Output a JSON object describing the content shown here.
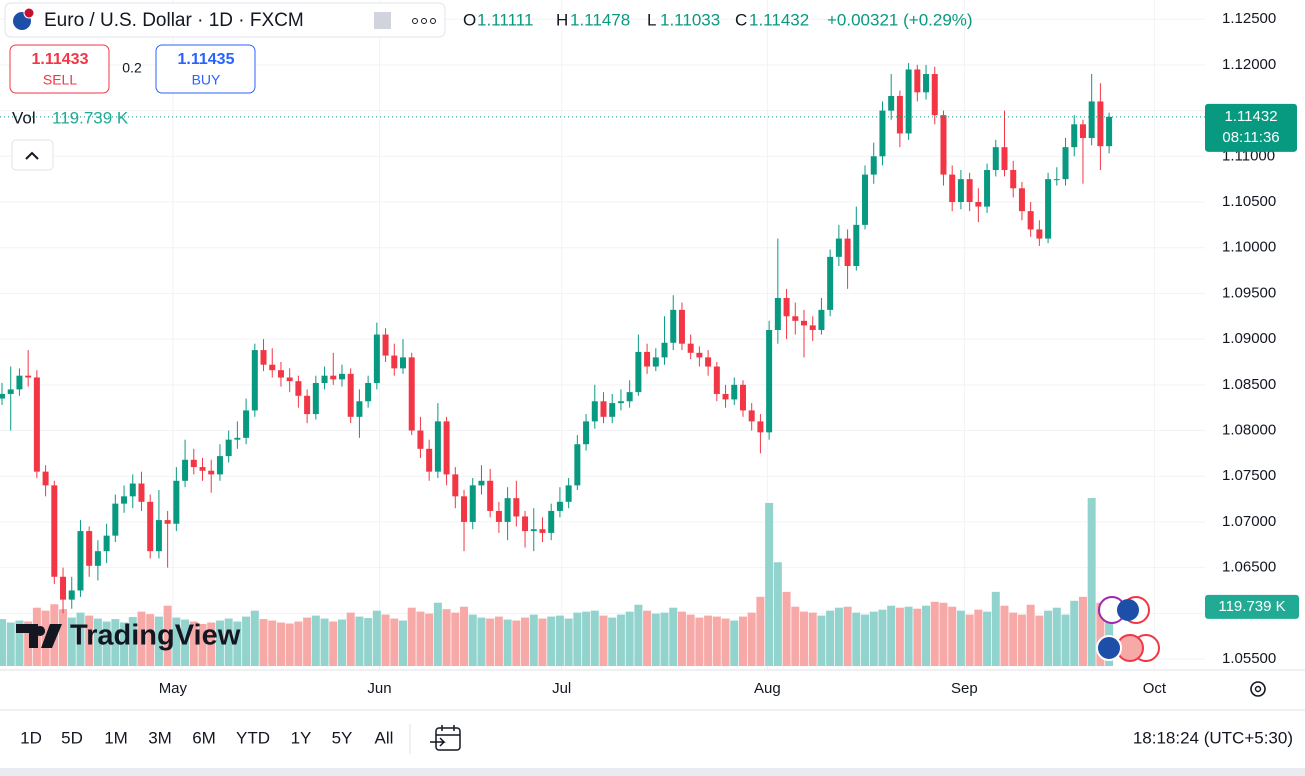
{
  "header": {
    "title": "Euro / U.S. Dollar · 1D · FXCM",
    "ohlc_labels": [
      "O",
      "H",
      "L",
      "C"
    ],
    "change": "+0.00321 (+0.29%)"
  },
  "trade": {
    "sell_price": "1.11433",
    "sell": "SELL",
    "spread": "0.2",
    "buy_price": "1.11435",
    "buy": "BUY"
  },
  "countdown": "08:11:36",
  "watermark": "TradingView",
  "footer": {
    "ranges": [
      "1D",
      "5D",
      "1M",
      "3M",
      "6M",
      "YTD",
      "1Y",
      "5Y",
      "All"
    ],
    "clock": "18:18:24 (UTC+5:30)"
  },
  "chart_data": {
    "type": "candlestick",
    "up_color": "#089981",
    "down_color": "#f23645",
    "volume_up_color": "#93d3cd",
    "volume_down_color": "#f7a9a7",
    "grid": true,
    "xlim": [
      -0.23,
      138
    ],
    "xticks": [
      {
        "value": 19.6,
        "label": "May"
      },
      {
        "value": 43.3,
        "label": "Jun"
      },
      {
        "value": 64.2,
        "label": "Jul"
      },
      {
        "value": 87.8,
        "label": "Aug"
      },
      {
        "value": 110.4,
        "label": "Sep"
      },
      {
        "value": 132.2,
        "label": "Oct"
      }
    ],
    "ylim": [
      1.0538,
      1.1271
    ],
    "yticks": [
      {
        "value": 1.055,
        "label": "1.05500"
      },
      {
        "value": 1.06,
        "label": "1.06000"
      },
      {
        "value": 1.065,
        "label": "1.06500"
      },
      {
        "value": 1.07,
        "label": "1.07000"
      },
      {
        "value": 1.075,
        "label": "1.07500"
      },
      {
        "value": 1.08,
        "label": "1.08000"
      },
      {
        "value": 1.085,
        "label": "1.08500"
      },
      {
        "value": 1.09,
        "label": "1.09000"
      },
      {
        "value": 1.095,
        "label": "1.09500"
      },
      {
        "value": 1.1,
        "label": "1.10000"
      },
      {
        "value": 1.105,
        "label": "1.10500"
      },
      {
        "value": 1.11,
        "label": "1.11000"
      },
      {
        "value": 1.115,
        "label": "1.11500"
      },
      {
        "value": 1.12,
        "label": "1.12000"
      },
      {
        "value": 1.125,
        "label": "1.12500"
      }
    ],
    "open": [
      1.0835,
      1.084,
      1.0845,
      1.086,
      1.0858,
      1.0755,
      1.074,
      1.064,
      1.0615,
      1.0625,
      1.069,
      1.0652,
      1.0668,
      1.0685,
      1.072,
      1.0728,
      1.0742,
      1.0722,
      1.0668,
      1.0702,
      1.0698,
      1.0745,
      1.0768,
      1.076,
      1.0756,
      1.0752,
      1.0772,
      1.079,
      1.0792,
      1.0822,
      1.0888,
      1.0872,
      1.0866,
      1.0858,
      1.0854,
      1.0838,
      1.0818,
      1.0852,
      1.086,
      1.0856,
      1.0862,
      1.0815,
      1.0832,
      1.0852,
      1.0905,
      1.0882,
      1.0868,
      1.088,
      1.08,
      1.078,
      1.0755,
      1.081,
      1.0752,
      1.0728,
      1.07,
      1.074,
      1.0745,
      1.0712,
      1.07,
      1.0726,
      1.0706,
      1.069,
      1.0692,
      1.0688,
      1.0712,
      1.0722,
      1.074,
      1.0785,
      1.081,
      1.0832,
      1.0815,
      1.083,
      1.0832,
      1.0842,
      1.0886,
      1.087,
      1.088,
      1.0896,
      1.0932,
      1.0895,
      1.0885,
      1.088,
      1.087,
      1.084,
      1.0834,
      1.085,
      1.0822,
      1.081,
      1.0798,
      1.091,
      1.0945,
      1.0925,
      1.092,
      1.0915,
      1.091,
      1.0932,
      1.099,
      1.101,
      1.098,
      1.1025,
      1.108,
      1.11,
      1.115,
      1.1166,
      1.1125,
      1.1195,
      1.117,
      1.119,
      1.1145,
      1.108,
      1.105,
      1.1075,
      1.105,
      1.1045,
      1.1085,
      1.111,
      1.1085,
      1.1065,
      1.104,
      1.102,
      1.101,
      1.1075,
      1.1075,
      1.111,
      1.1135,
      1.112,
      1.116,
      1.11111
    ],
    "high": [
      1.0852,
      1.087,
      1.0868,
      1.0888,
      1.0866,
      1.0762,
      1.0745,
      1.065,
      1.064,
      1.0702,
      1.0695,
      1.068,
      1.0698,
      1.073,
      1.074,
      1.0752,
      1.0755,
      1.073,
      1.0735,
      1.0712,
      1.076,
      1.079,
      1.078,
      1.077,
      1.0768,
      1.0785,
      1.08,
      1.081,
      1.0835,
      1.0895,
      1.09,
      1.089,
      1.0875,
      1.0868,
      1.086,
      1.0845,
      1.086,
      1.087,
      1.0885,
      1.0872,
      1.0868,
      1.0845,
      1.086,
      1.0918,
      1.0912,
      1.0895,
      1.09,
      1.0885,
      1.0815,
      1.079,
      1.083,
      1.0815,
      1.076,
      1.0735,
      1.0748,
      1.0762,
      1.0758,
      1.0722,
      1.0738,
      1.0745,
      1.0712,
      1.0715,
      1.0705,
      1.072,
      1.0738,
      1.0748,
      1.0795,
      1.0818,
      1.085,
      1.0842,
      1.084,
      1.0845,
      1.0855,
      1.0905,
      1.0895,
      1.089,
      1.0925,
      1.0948,
      1.094,
      1.0905,
      1.0892,
      1.0888,
      1.0875,
      1.085,
      1.0858,
      1.0855,
      1.083,
      1.0818,
      1.092,
      1.101,
      1.0955,
      1.094,
      1.0932,
      1.0925,
      1.0945,
      1.0998,
      1.1025,
      1.102,
      1.1045,
      1.109,
      1.1115,
      1.116,
      1.119,
      1.1172,
      1.1202,
      1.12,
      1.12,
      1.1198,
      1.115,
      1.109,
      1.1085,
      1.1082,
      1.1065,
      1.1092,
      1.1118,
      1.115,
      1.1095,
      1.1072,
      1.105,
      1.103,
      1.1082,
      1.1088,
      1.112,
      1.1145,
      1.114,
      1.119,
      1.118,
      1.11478
    ],
    "low": [
      1.0828,
      1.08,
      1.0838,
      1.0848,
      1.0748,
      1.0728,
      1.0632,
      1.06,
      1.0605,
      1.0618,
      1.064,
      1.0636,
      1.0655,
      1.0678,
      1.071,
      1.0715,
      1.0712,
      1.066,
      1.066,
      1.065,
      1.069,
      1.0738,
      1.0752,
      1.0745,
      1.0732,
      1.0745,
      1.0765,
      1.078,
      1.0785,
      1.0815,
      1.0865,
      1.0858,
      1.0848,
      1.0842,
      1.0825,
      1.0808,
      1.0812,
      1.0845,
      1.085,
      1.0848,
      1.0808,
      1.0792,
      1.0825,
      1.0845,
      1.0875,
      1.086,
      1.0862,
      1.0795,
      1.077,
      1.0745,
      1.0748,
      1.074,
      1.0715,
      1.0668,
      1.0692,
      1.073,
      1.0705,
      1.0688,
      1.068,
      1.0695,
      1.0672,
      1.0668,
      1.0678,
      1.068,
      1.0705,
      1.0715,
      1.0735,
      1.0778,
      1.0802,
      1.0808,
      1.0808,
      1.0822,
      1.0825,
      1.0838,
      1.0862,
      1.0865,
      1.0872,
      1.0888,
      1.0888,
      1.0878,
      1.087,
      1.086,
      1.0832,
      1.0825,
      1.0828,
      1.0815,
      1.08,
      1.0775,
      1.079,
      1.0895,
      1.09,
      1.0905,
      1.088,
      1.0898,
      1.0905,
      1.0925,
      1.098,
      1.0955,
      1.0975,
      1.102,
      1.107,
      1.109,
      1.114,
      1.111,
      1.1118,
      1.116,
      1.1162,
      1.1135,
      1.1068,
      1.104,
      1.1042,
      1.104,
      1.1028,
      1.1038,
      1.1078,
      1.1078,
      1.1055,
      1.103,
      1.1012,
      1.1002,
      1.1005,
      1.1068,
      1.1068,
      1.11,
      1.107,
      1.1112,
      1.1085,
      1.11033
    ],
    "close": [
      1.084,
      1.0845,
      1.086,
      1.0858,
      1.0755,
      1.074,
      1.064,
      1.0615,
      1.0625,
      1.069,
      1.0652,
      1.0668,
      1.0685,
      1.072,
      1.0728,
      1.0742,
      1.0722,
      1.0668,
      1.0702,
      1.0698,
      1.0745,
      1.0768,
      1.076,
      1.0756,
      1.0752,
      1.0772,
      1.079,
      1.0792,
      1.0822,
      1.0888,
      1.0872,
      1.0866,
      1.0858,
      1.0854,
      1.0838,
      1.0818,
      1.0852,
      1.086,
      1.0856,
      1.0862,
      1.0815,
      1.0832,
      1.0852,
      1.0905,
      1.0882,
      1.0868,
      1.088,
      1.08,
      1.078,
      1.0755,
      1.081,
      1.0752,
      1.0728,
      1.07,
      1.074,
      1.0745,
      1.0712,
      1.07,
      1.0726,
      1.0706,
      1.069,
      1.0692,
      1.0688,
      1.0712,
      1.0722,
      1.074,
      1.0785,
      1.081,
      1.0832,
      1.0815,
      1.083,
      1.0832,
      1.0842,
      1.0886,
      1.087,
      1.088,
      1.0896,
      1.0932,
      1.0895,
      1.0885,
      1.088,
      1.087,
      1.084,
      1.0834,
      1.085,
      1.0822,
      1.081,
      1.0798,
      1.091,
      1.0945,
      1.0925,
      1.092,
      1.0915,
      1.091,
      1.0932,
      1.099,
      1.101,
      1.098,
      1.1025,
      1.108,
      1.11,
      1.115,
      1.1166,
      1.1125,
      1.1195,
      1.117,
      1.119,
      1.1145,
      1.108,
      1.105,
      1.1075,
      1.105,
      1.1045,
      1.1085,
      1.111,
      1.1085,
      1.1065,
      1.104,
      1.102,
      1.101,
      1.1075,
      1.1075,
      1.111,
      1.1135,
      1.112,
      1.116,
      1.11111,
      1.11432
    ],
    "volume": {
      "name": "Vol",
      "last_label": "119.739 K",
      "values": [
        95000,
        88000,
        92000,
        90000,
        118000,
        112000,
        125000,
        115000,
        98000,
        108000,
        102000,
        96000,
        90000,
        95000,
        88000,
        99000,
        110000,
        105000,
        100000,
        122000,
        98000,
        94000,
        90000,
        85000,
        88000,
        92000,
        96000,
        90000,
        100000,
        112000,
        95000,
        92000,
        88000,
        86000,
        90000,
        98000,
        102000,
        96000,
        90000,
        94000,
        108000,
        100000,
        97000,
        112000,
        104000,
        96000,
        92000,
        118000,
        110000,
        106000,
        128000,
        115000,
        108000,
        120000,
        104000,
        98000,
        96000,
        100000,
        94000,
        92000,
        98000,
        104000,
        96000,
        100000,
        102000,
        96000,
        108000,
        110000,
        112000,
        102000,
        98000,
        104000,
        110000,
        124000,
        112000,
        106000,
        108000,
        118000,
        110000,
        104000,
        98000,
        102000,
        100000,
        96000,
        92000,
        100000,
        108000,
        140000,
        330000,
        210000,
        150000,
        120000,
        110000,
        108000,
        102000,
        112000,
        118000,
        120000,
        108000,
        104000,
        110000,
        114000,
        122000,
        118000,
        120000,
        116000,
        122000,
        130000,
        128000,
        120000,
        112000,
        104000,
        114000,
        110000,
        150000,
        122000,
        108000,
        104000,
        124000,
        102000,
        112000,
        118000,
        104000,
        132000,
        140000,
        340000,
        128000,
        119739
      ]
    }
  }
}
